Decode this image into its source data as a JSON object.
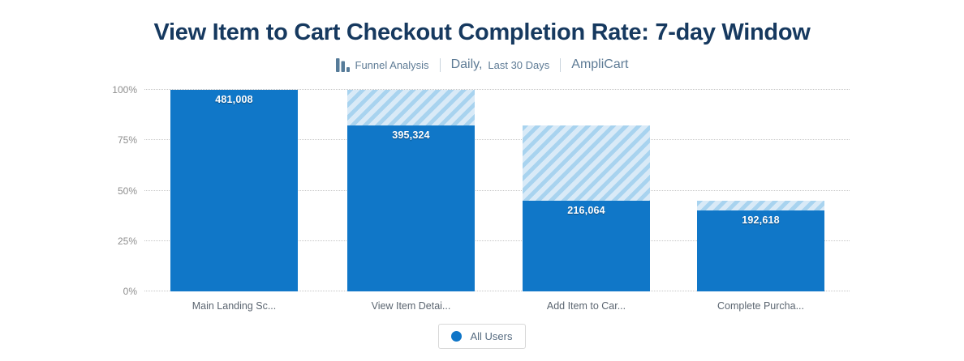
{
  "title": "View Item to Cart Checkout Completion Rate: 7-day Window",
  "subtitle": {
    "chart_type": "Funnel Analysis",
    "date_primary": "Daily,",
    "date_secondary": "Last 30 Days",
    "project": "AmpliCart"
  },
  "legend": {
    "items": [
      {
        "label": "All Users",
        "color": "#1076c8"
      }
    ]
  },
  "colors": {
    "bar_solid": "#1077c8",
    "hatch_dark": "#a8d3ef",
    "hatch_light": "#d9eaf7",
    "title_text": "#16395f",
    "subtitle_text": "#5e7b95",
    "icon_slate": "#567b99"
  },
  "chart_data": {
    "type": "bar",
    "subtype": "funnel",
    "title": "View Item to Cart Checkout Completion Rate: 7-day Window",
    "categories": [
      "Main Landing Sc...",
      "View Item Detai...",
      "Add Item to Car...",
      "Complete Purcha..."
    ],
    "series": [
      {
        "name": "All Users",
        "values": [
          481008,
          395324,
          216064,
          192618
        ]
      }
    ],
    "values": [
      481008,
      395324,
      216064,
      192618
    ],
    "value_labels": [
      "481,008",
      "395,324",
      "216,064",
      "192,618"
    ],
    "percent_of_first": [
      100,
      82.2,
      44.9,
      40.0
    ],
    "xlabel": "",
    "ylabel": "",
    "y_ticks": [
      "100%",
      "75%",
      "50%",
      "25%",
      "0%"
    ],
    "ylim": [
      0,
      100
    ],
    "grid": "horizontal-dotted",
    "legend_position": "bottom",
    "dropoff_style": "hatched segment above each bar showing previous step level"
  }
}
